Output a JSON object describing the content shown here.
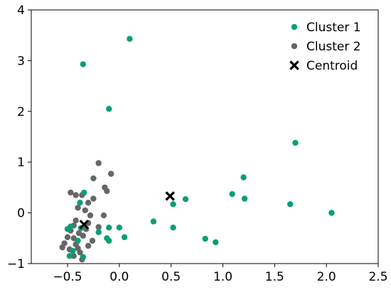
{
  "chart_data": {
    "type": "scatter",
    "title": "",
    "xlabel": "",
    "ylabel": "",
    "xlim": [
      -0.85,
      2.5
    ],
    "ylim": [
      -1,
      4
    ],
    "xticks": [
      "−0.5",
      "0.0",
      "0.5",
      "1.0",
      "1.5",
      "2.0",
      "2.5"
    ],
    "xtick_values": [
      -0.5,
      0.0,
      0.5,
      1.0,
      1.5,
      2.0,
      2.5
    ],
    "yticks": [
      "−1",
      "0",
      "1",
      "2",
      "3",
      "4"
    ],
    "ytick_values": [
      -1,
      0,
      1,
      2,
      3,
      4
    ],
    "grid": false,
    "legend_position": "top-right",
    "series": [
      {
        "name": "Cluster 1",
        "color": "#0a9e78",
        "marker": "circle",
        "points": [
          [
            0.1,
            3.43
          ],
          [
            -0.35,
            2.93
          ],
          [
            -0.1,
            2.05
          ],
          [
            1.7,
            1.38
          ],
          [
            1.2,
            0.7
          ],
          [
            1.09,
            0.37
          ],
          [
            1.21,
            0.28
          ],
          [
            1.65,
            0.17
          ],
          [
            2.05,
            0.0
          ],
          [
            0.64,
            0.27
          ],
          [
            0.52,
            0.17
          ],
          [
            0.33,
            -0.17
          ],
          [
            0.52,
            -0.29
          ],
          [
            0.83,
            -0.51
          ],
          [
            0.93,
            -0.58
          ],
          [
            0.05,
            -0.48
          ],
          [
            0.0,
            -0.29
          ],
          [
            -0.1,
            -0.29
          ],
          [
            -0.12,
            -0.5
          ],
          [
            -0.1,
            -0.55
          ],
          [
            -0.2,
            -0.38
          ],
          [
            -0.34,
            0.4
          ],
          [
            -0.38,
            0.2
          ],
          [
            -0.37,
            -0.3
          ],
          [
            -0.47,
            -0.27
          ],
          [
            -0.5,
            -0.32
          ],
          [
            -0.45,
            -0.75
          ],
          [
            -0.48,
            -0.85
          ],
          [
            -0.35,
            -0.87
          ],
          [
            -0.4,
            -0.55
          ]
        ]
      },
      {
        "name": "Cluster 2",
        "color": "#666666",
        "marker": "circle",
        "points": [
          [
            -0.2,
            0.98
          ],
          [
            -0.08,
            0.77
          ],
          [
            -0.25,
            0.68
          ],
          [
            -0.14,
            0.5
          ],
          [
            -0.12,
            0.43
          ],
          [
            -0.25,
            0.28
          ],
          [
            -0.3,
            0.2
          ],
          [
            -0.47,
            0.4
          ],
          [
            -0.42,
            0.35
          ],
          [
            -0.4,
            0.1
          ],
          [
            -0.36,
            0.35
          ],
          [
            -0.33,
            0.05
          ],
          [
            -0.28,
            -0.05
          ],
          [
            -0.15,
            -0.05
          ],
          [
            -0.3,
            -0.2
          ],
          [
            -0.42,
            -0.15
          ],
          [
            -0.44,
            -0.25
          ],
          [
            -0.47,
            -0.35
          ],
          [
            -0.35,
            -0.45
          ],
          [
            -0.39,
            -0.4
          ],
          [
            -0.44,
            -0.5
          ],
          [
            -0.5,
            -0.48
          ],
          [
            -0.53,
            -0.6
          ],
          [
            -0.55,
            -0.68
          ],
          [
            -0.48,
            -0.72
          ],
          [
            -0.42,
            -0.62
          ],
          [
            -0.4,
            -0.7
          ],
          [
            -0.38,
            -0.78
          ],
          [
            -0.44,
            -0.85
          ],
          [
            -0.36,
            -0.92
          ],
          [
            -0.3,
            -0.65
          ],
          [
            -0.26,
            -0.55
          ],
          [
            -0.32,
            -0.32
          ],
          [
            -0.2,
            -0.28
          ]
        ]
      },
      {
        "name": "Centroid",
        "color": "#000000",
        "marker": "x",
        "points": [
          [
            0.49,
            0.33
          ],
          [
            -0.34,
            -0.23
          ]
        ]
      }
    ]
  }
}
